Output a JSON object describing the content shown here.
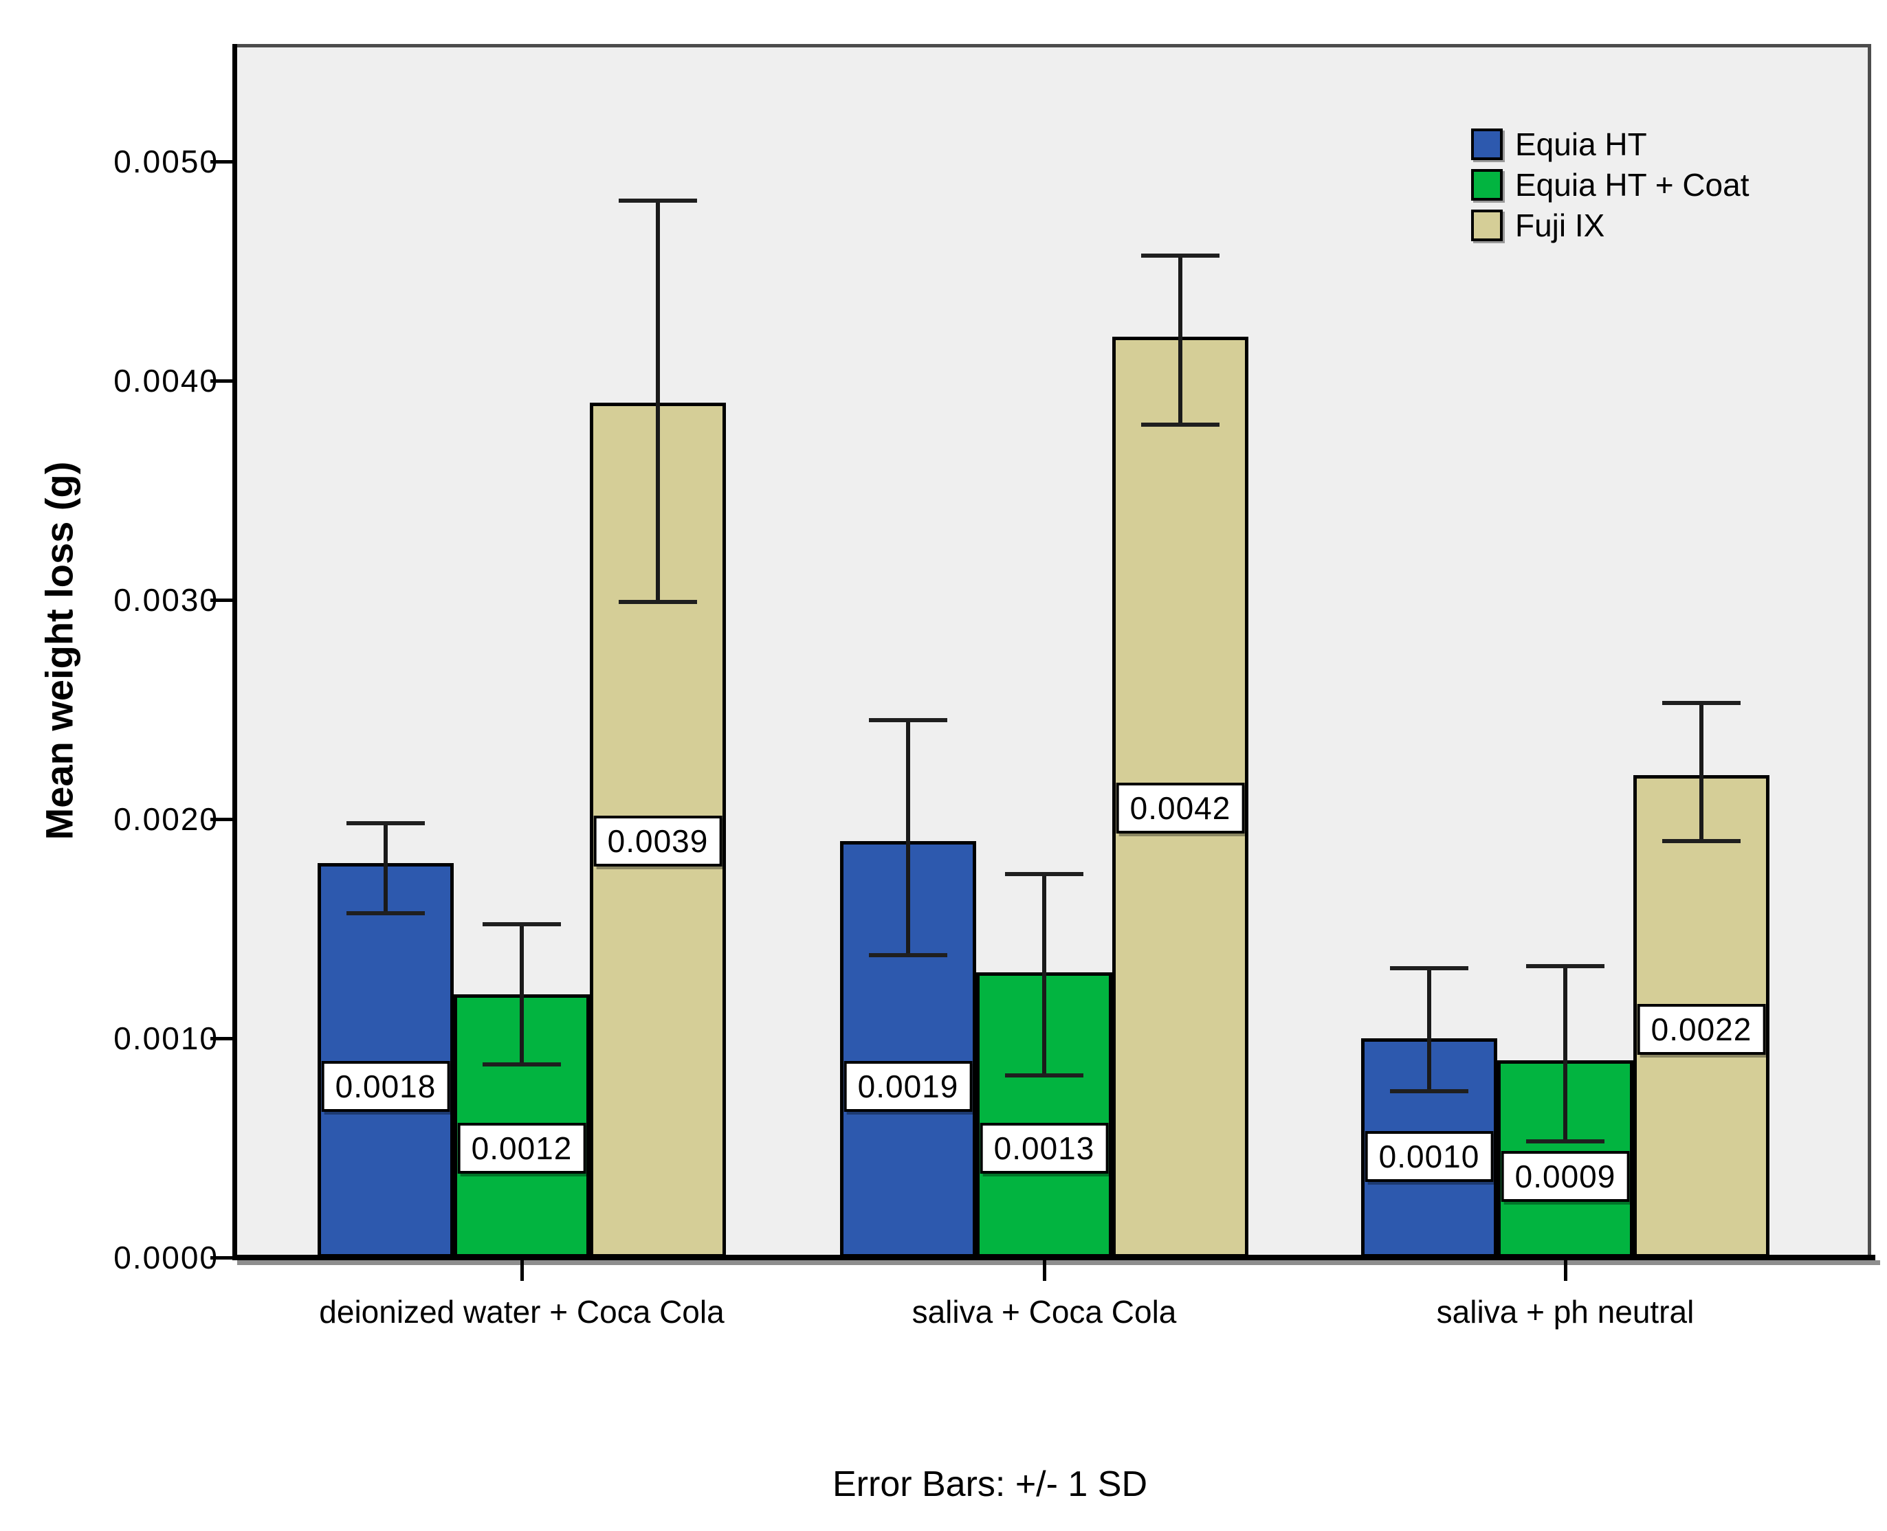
{
  "figure": {
    "caption": "Error Bars: +/- 1 SD"
  },
  "colors": {
    "page_background": "#ffffff",
    "plot_background": "#efefef",
    "axis": "#000000",
    "series_blue": "#2d59ae",
    "series_green": "#02b440",
    "series_tan": "#d5ce97"
  },
  "chart_data": {
    "type": "bar",
    "title": "",
    "xlabel": "",
    "ylabel": "Mean weight loss (g)",
    "ylim": [
      0,
      0.00554
    ],
    "grid": false,
    "legend_position": "top-right",
    "error_bars": "+/- 1 SD",
    "categories": [
      "deionized water + Coca Cola",
      "saliva + Coca Cola",
      "saliva + ph neutral"
    ],
    "y_axis": {
      "ticks": [
        {
          "value": 0.0,
          "label": "0.0000"
        },
        {
          "value": 0.001,
          "label": "0.0010"
        },
        {
          "value": 0.002,
          "label": "0.0020"
        },
        {
          "value": 0.003,
          "label": "0.0030"
        },
        {
          "value": 0.004,
          "label": "0.0040"
        },
        {
          "value": 0.005,
          "label": "0.0050"
        }
      ]
    },
    "series": [
      {
        "name": "Equia HT",
        "color": "#2d59ae",
        "values": [
          0.0018,
          0.0019,
          0.001
        ],
        "value_labels": [
          "0.0018",
          "0.0019",
          "0.0010"
        ],
        "error_top": [
          0.00198,
          0.00245,
          0.00132
        ],
        "error_bottom": [
          0.00157,
          0.00138,
          0.00076
        ],
        "label_anchor_values": [
          0.00078,
          0.00078,
          0.00046
        ]
      },
      {
        "name": "Equia HT + Coat",
        "color": "#02b440",
        "values": [
          0.0012,
          0.0013,
          0.0009
        ],
        "value_labels": [
          "0.0012",
          "0.0013",
          "0.0009"
        ],
        "error_top": [
          0.00152,
          0.00175,
          0.00133
        ],
        "error_bottom": [
          0.00088,
          0.00083,
          0.00053
        ],
        "label_anchor_values": [
          0.0005,
          0.0005,
          0.00037
        ]
      },
      {
        "name": "Fuji IX",
        "color": "#d5ce97",
        "values": [
          0.0039,
          0.0042,
          0.0022
        ],
        "value_labels": [
          "0.0039",
          "0.0042",
          "0.0022"
        ],
        "error_top": [
          0.00482,
          0.00457,
          0.00253
        ],
        "error_bottom": [
          0.00299,
          0.0038,
          0.0019
        ],
        "label_anchor_values": [
          0.0019,
          0.00205,
          0.00104
        ]
      }
    ]
  }
}
